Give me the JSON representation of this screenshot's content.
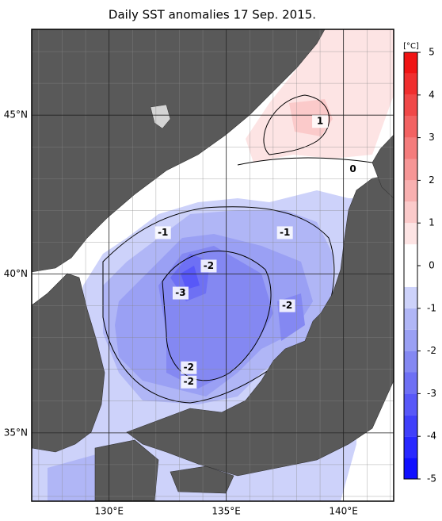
{
  "title": "Daily SST anomalies 17 Sep. 2015.",
  "map": {
    "lon_lim": [
      126.7,
      142.14
    ],
    "lat_lim": [
      32.85,
      47.7
    ],
    "lon_ticks": [
      {
        "value": 130,
        "label": "130°E"
      },
      {
        "value": 135,
        "label": "135°E"
      },
      {
        "value": 140,
        "label": "140°E"
      }
    ],
    "lat_ticks": [
      {
        "value": 35,
        "label": "35°N"
      },
      {
        "value": 40,
        "label": "40°N"
      },
      {
        "value": 45,
        "label": "45°N"
      }
    ],
    "grid_lons": [
      127,
      128,
      129,
      130,
      131,
      132,
      133,
      134,
      135,
      136,
      137,
      138,
      139,
      140,
      141,
      142
    ],
    "grid_lats": [
      33,
      34,
      35,
      36,
      37,
      38,
      39,
      40,
      41,
      42,
      43,
      44,
      45,
      46,
      47
    ],
    "contour_labels": [
      {
        "value": 1,
        "lon": 139.0,
        "lat": 44.8
      },
      {
        "value": 0,
        "lon": 140.4,
        "lat": 43.3
      },
      {
        "value": -1,
        "lon": 132.3,
        "lat": 41.3
      },
      {
        "value": -1,
        "lon": 137.5,
        "lat": 41.3
      },
      {
        "value": -2,
        "lon": 134.25,
        "lat": 40.25
      },
      {
        "value": -3,
        "lon": 133.05,
        "lat": 39.4
      },
      {
        "value": -2,
        "lon": 137.6,
        "lat": 39.0
      },
      {
        "value": -2,
        "lon": 133.4,
        "lat": 37.05
      },
      {
        "value": -2,
        "lon": 133.4,
        "lat": 36.6
      }
    ]
  },
  "colorbar": {
    "unit": "[°C]",
    "levels": [
      -5,
      -4.5,
      -4,
      -3.5,
      -3,
      -2.5,
      -2,
      -1.5,
      -1,
      -0.5,
      0,
      0.5,
      1,
      1.5,
      2,
      2.5,
      3,
      3.5,
      4,
      4.5,
      5
    ],
    "colors": [
      "#1010ff",
      "#2828ff",
      "#4040fa",
      "#5858f8",
      "#6e70f4",
      "#8488f2",
      "#9aa0f4",
      "#b0b6f6",
      "#cdd2fa",
      "#ffffff",
      "#ffffff",
      "#fde4e4",
      "#fbcaca",
      "#f8b0b0",
      "#f69696",
      "#f47c7c",
      "#f26262",
      "#f04848",
      "#f02e2e",
      "#f01414"
    ],
    "ticks": [
      5,
      4,
      3,
      2,
      1,
      0,
      -1,
      -2,
      -3,
      -4,
      -5
    ]
  }
}
